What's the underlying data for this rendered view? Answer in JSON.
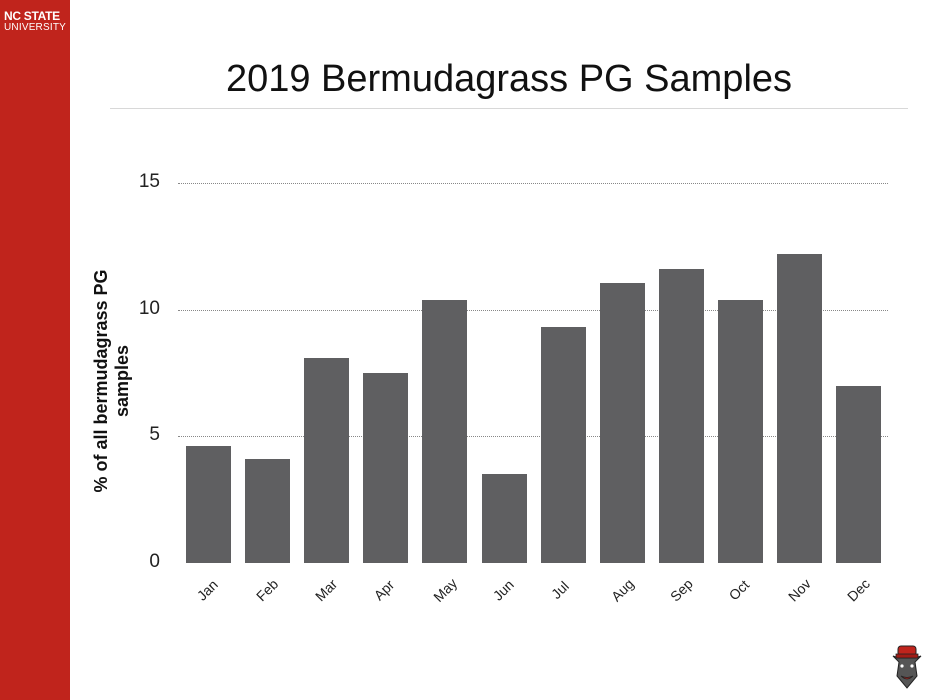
{
  "branding": {
    "line1": "NC STATE",
    "line2": "UNIVERSITY",
    "sidebar_color": "#c0241c",
    "mascot": "wolf-mascot-icon"
  },
  "slide": {
    "title": "2019 Bermudagrass PG Samples"
  },
  "chart_data": {
    "type": "bar",
    "title": "2019 Bermudagrass PG Samples",
    "xlabel": "",
    "ylabel": "% of all bermudagrass PG samples",
    "categories": [
      "Jan",
      "Feb",
      "Mar",
      "Apr",
      "May",
      "Jun",
      "Jul",
      "Aug",
      "Sep",
      "Oct",
      "Nov",
      "Dec"
    ],
    "values": [
      4.6,
      4.1,
      8.1,
      7.5,
      10.4,
      3.5,
      9.3,
      11.05,
      11.6,
      10.4,
      12.2,
      7.0
    ],
    "ylim": [
      0,
      15
    ],
    "yticks": [
      "0",
      "5",
      "10",
      "15"
    ],
    "grid": true,
    "bar_color": "#5f5f61",
    "legend": null
  }
}
